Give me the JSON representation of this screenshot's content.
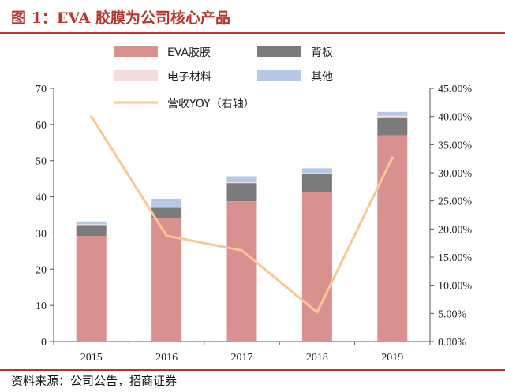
{
  "header": {
    "title": "图 1：EVA 胶膜为公司核心产品"
  },
  "footer": {
    "source": "资料来源：公司公告，招商证券"
  },
  "colors": {
    "eva": "#d9918f",
    "backsheet": "#7b7b7b",
    "electronic": "#f3dedd",
    "other": "#b5c9e6",
    "yoy": "#f7c896",
    "accent": "#b8342c"
  },
  "chart_data": {
    "type": "bar",
    "stacked": true,
    "categories": [
      "2015",
      "2016",
      "2017",
      "2018",
      "2019"
    ],
    "series": [
      {
        "name": "EVA胶膜",
        "values": [
          29.2,
          34.0,
          38.8,
          41.4,
          57.0
        ]
      },
      {
        "name": "背板",
        "values": [
          3.0,
          3.0,
          5.0,
          5.0,
          5.0
        ]
      },
      {
        "name": "电子材料",
        "values": [
          0.2,
          0.2,
          0.2,
          0.2,
          0.4
        ]
      },
      {
        "name": "其他",
        "values": [
          0.8,
          2.3,
          1.7,
          1.3,
          1.1
        ]
      }
    ],
    "line_series": {
      "name": "营收YOY（右轴）",
      "values": [
        0.4,
        0.188,
        0.162,
        0.052,
        0.327
      ]
    },
    "y_left": {
      "min": 0,
      "max": 70,
      "ticks": [
        "0",
        "10",
        "20",
        "30",
        "40",
        "50",
        "60",
        "70"
      ]
    },
    "y_right": {
      "min": 0,
      "max": 0.45,
      "ticks": [
        "0.00%",
        "5.00%",
        "10.00%",
        "15.00%",
        "20.00%",
        "25.00%",
        "30.00%",
        "35.00%",
        "40.00%",
        "45.00%"
      ]
    },
    "legend": {
      "placement": "top",
      "items": [
        "EVA胶膜",
        "背板",
        "电子材料",
        "其他",
        "营收YOY（右轴）"
      ]
    },
    "grid": false
  }
}
